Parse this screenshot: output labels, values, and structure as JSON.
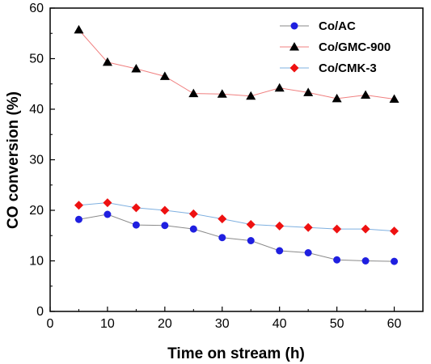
{
  "chart_data": {
    "type": "line",
    "title": "",
    "xlabel": "Time on stream (h)",
    "ylabel": "CO conversion (%)",
    "xlim": [
      0,
      65
    ],
    "ylim": [
      0,
      60
    ],
    "xticks": [
      0,
      10,
      20,
      30,
      40,
      50,
      60
    ],
    "yticks": [
      0,
      10,
      20,
      30,
      40,
      50,
      60
    ],
    "grid": false,
    "legend_position": "top-right",
    "x": [
      5,
      10,
      15,
      20,
      25,
      30,
      35,
      40,
      45,
      50,
      55,
      60
    ],
    "series": [
      {
        "name": "Co/AC",
        "marker": "circle",
        "marker_color": "#1f1fe0",
        "line_color": "#8a8a8a",
        "values": [
          18.2,
          19.2,
          17.1,
          17.0,
          16.3,
          14.6,
          14.0,
          12.0,
          11.6,
          10.2,
          10.0,
          9.9
        ]
      },
      {
        "name": "Co/GMC-900",
        "marker": "triangle",
        "marker_color": "#000000",
        "line_color": "#f08080",
        "values": [
          55.7,
          49.3,
          48.0,
          46.5,
          43.1,
          43.0,
          42.6,
          44.2,
          43.3,
          42.1,
          42.8,
          42.0
        ]
      },
      {
        "name": "Co/CMK-3",
        "marker": "diamond",
        "marker_color": "#ee1111",
        "line_color": "#7fb0e0",
        "values": [
          21.0,
          21.5,
          20.5,
          20.0,
          19.3,
          18.3,
          17.2,
          16.9,
          16.6,
          16.3,
          16.3,
          15.9
        ]
      }
    ]
  }
}
